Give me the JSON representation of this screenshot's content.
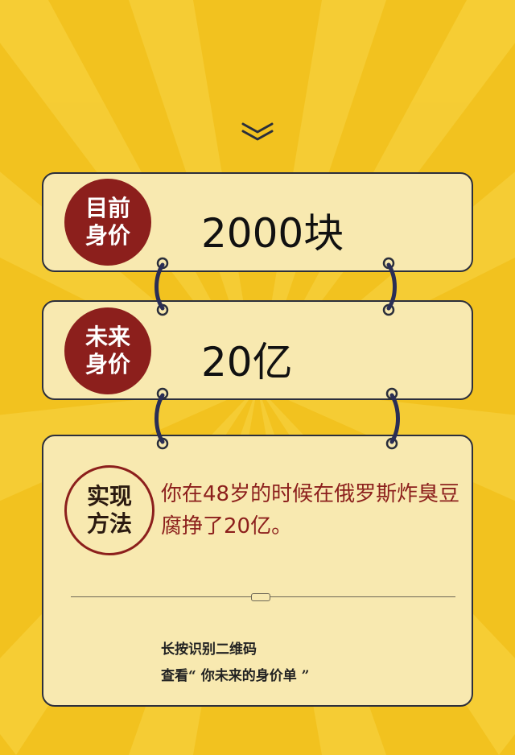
{
  "colors": {
    "background": "#f2c21f",
    "card": "#f8e9b0",
    "accent": "#8c1f1c"
  },
  "icons": {
    "scroll_hint": "double-chevron-down-icon",
    "rings": "binder-ring-icon"
  },
  "current_worth": {
    "badge_line1": "目前",
    "badge_line2": "身价",
    "value": "2000块"
  },
  "future_worth": {
    "badge_line1": "未来",
    "badge_line2": "身价",
    "value": "20亿"
  },
  "method": {
    "badge_line1": "实现",
    "badge_line2": "方法",
    "text": "你在48岁的时候在俄罗斯炸臭豆腐挣了20亿。"
  },
  "qr_hint": {
    "line1": "长按识别二维码",
    "line2": "查看“ 你未来的身价单 ”"
  }
}
